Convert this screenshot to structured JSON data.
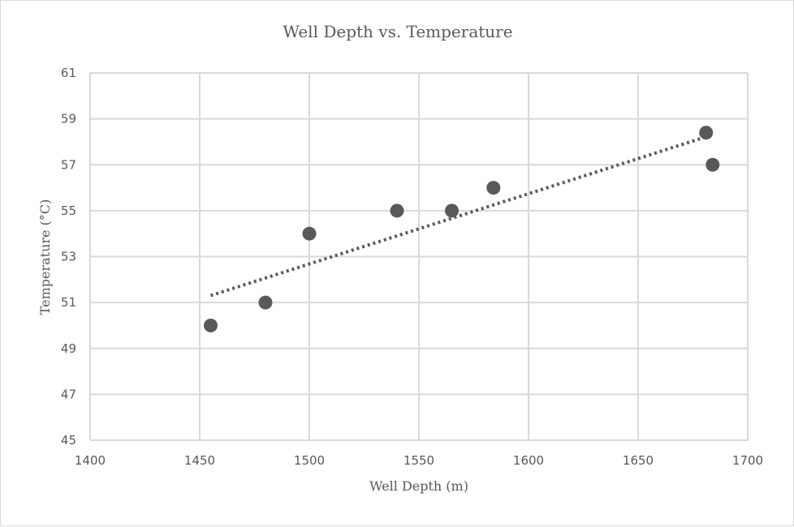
{
  "chart_data": {
    "type": "scatter",
    "title": "Well Depth vs. Temperature",
    "xlabel": "Well Depth (m)",
    "ylabel": "Temperature (°C)",
    "xlim": [
      1400,
      1700
    ],
    "ylim": [
      45,
      61
    ],
    "xticks": [
      "1400",
      "1450",
      "1500",
      "1550",
      "1600",
      "1650",
      "1700"
    ],
    "yticks": [
      "45",
      "47",
      "49",
      "51",
      "53",
      "55",
      "57",
      "59",
      "61"
    ],
    "grid": true,
    "legend": "none",
    "points": [
      {
        "x": 1455,
        "y": 50
      },
      {
        "x": 1480,
        "y": 51
      },
      {
        "x": 1500,
        "y": 54
      },
      {
        "x": 1540,
        "y": 55
      },
      {
        "x": 1565,
        "y": 55
      },
      {
        "x": 1584,
        "y": 56
      },
      {
        "x": 1681,
        "y": 58.4
      },
      {
        "x": 1684,
        "y": 57
      }
    ],
    "trendline": {
      "type": "linear",
      "style": "dotted",
      "x_start": 1455,
      "x_end": 1681
    },
    "colors": {
      "marker": "#595959",
      "trendline": "#595959",
      "grid": "#d9d9d9"
    }
  }
}
